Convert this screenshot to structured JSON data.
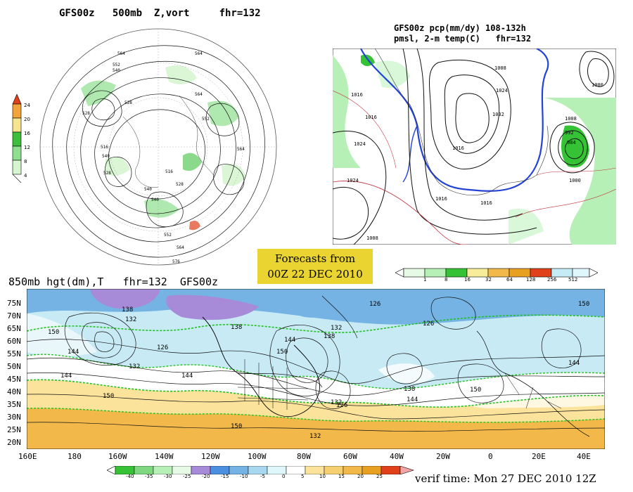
{
  "panel_top_left": {
    "title": "GFS00z   500mb  Z,vort     fhr=132",
    "colorbar_labels": [
      "24",
      "20",
      "16",
      "12",
      "8",
      "4"
    ],
    "contour_labels": [
      "564",
      "564",
      "552",
      "540",
      "528",
      "516",
      "528",
      "540",
      "564",
      "552",
      "564",
      "564",
      "576",
      "552",
      "540",
      "528",
      "516",
      "528",
      "540"
    ]
  },
  "panel_top_right": {
    "title_line1": "GFS00z pcp(mm/dy) 108-132h",
    "title_line2": "pmsl, 2-m temp(C)   fhr=132",
    "colorbar_labels": [
      "1",
      "8",
      "16",
      "32",
      "64",
      "128",
      "256",
      "512"
    ],
    "contour_labels": [
      "1008",
      "1016",
      "1024",
      "1016",
      "1032",
      "1024",
      "1016",
      "1008",
      "1000",
      "992",
      "984",
      "1016",
      "1024",
      "1000",
      "1016",
      "1008"
    ]
  },
  "forecast_box": {
    "line1": "Forecasts from",
    "line2": "00Z 22 DEC 2010"
  },
  "panel_bottom": {
    "title": "850mb hgt(dm),T   fhr=132  GFS00z",
    "lat_labels": [
      "75N",
      "70N",
      "65N",
      "60N",
      "55N",
      "50N",
      "45N",
      "40N",
      "35N",
      "30N",
      "25N",
      "20N"
    ],
    "lon_labels": [
      "160E",
      "180",
      "160W",
      "140W",
      "120W",
      "100W",
      "80W",
      "60W",
      "40W",
      "20W",
      "0",
      "20E",
      "40E"
    ],
    "contour_labels": [
      "150",
      "144",
      "138",
      "132",
      "126",
      "138",
      "132",
      "150",
      "144",
      "126",
      "138",
      "132",
      "144",
      "126",
      "150",
      "144",
      "150",
      "138",
      "132",
      "144",
      "150",
      "132",
      "126",
      "150",
      "144"
    ],
    "colorbar_labels": [
      "-40",
      "-35",
      "-30",
      "-25",
      "-20",
      "-15",
      "-10",
      "-5",
      "0",
      "5",
      "10",
      "15",
      "20",
      "25"
    ]
  },
  "verif_time": "verif time: Mon 27 DEC 2010 12Z",
  "colors": {
    "forecast_box_bg": "#e9d431",
    "temp_cold": "#a78bd8",
    "temp_cool": "#74b3e3",
    "temp_light": "#c7eaf5",
    "temp_warm": "#fbe39b",
    "temp_hot": "#f2b94a",
    "precip_green": "#35c235",
    "precip_light": "#b7f0b7",
    "isotherm_green": "#22c222",
    "pressure_blue": "#2342d8"
  }
}
